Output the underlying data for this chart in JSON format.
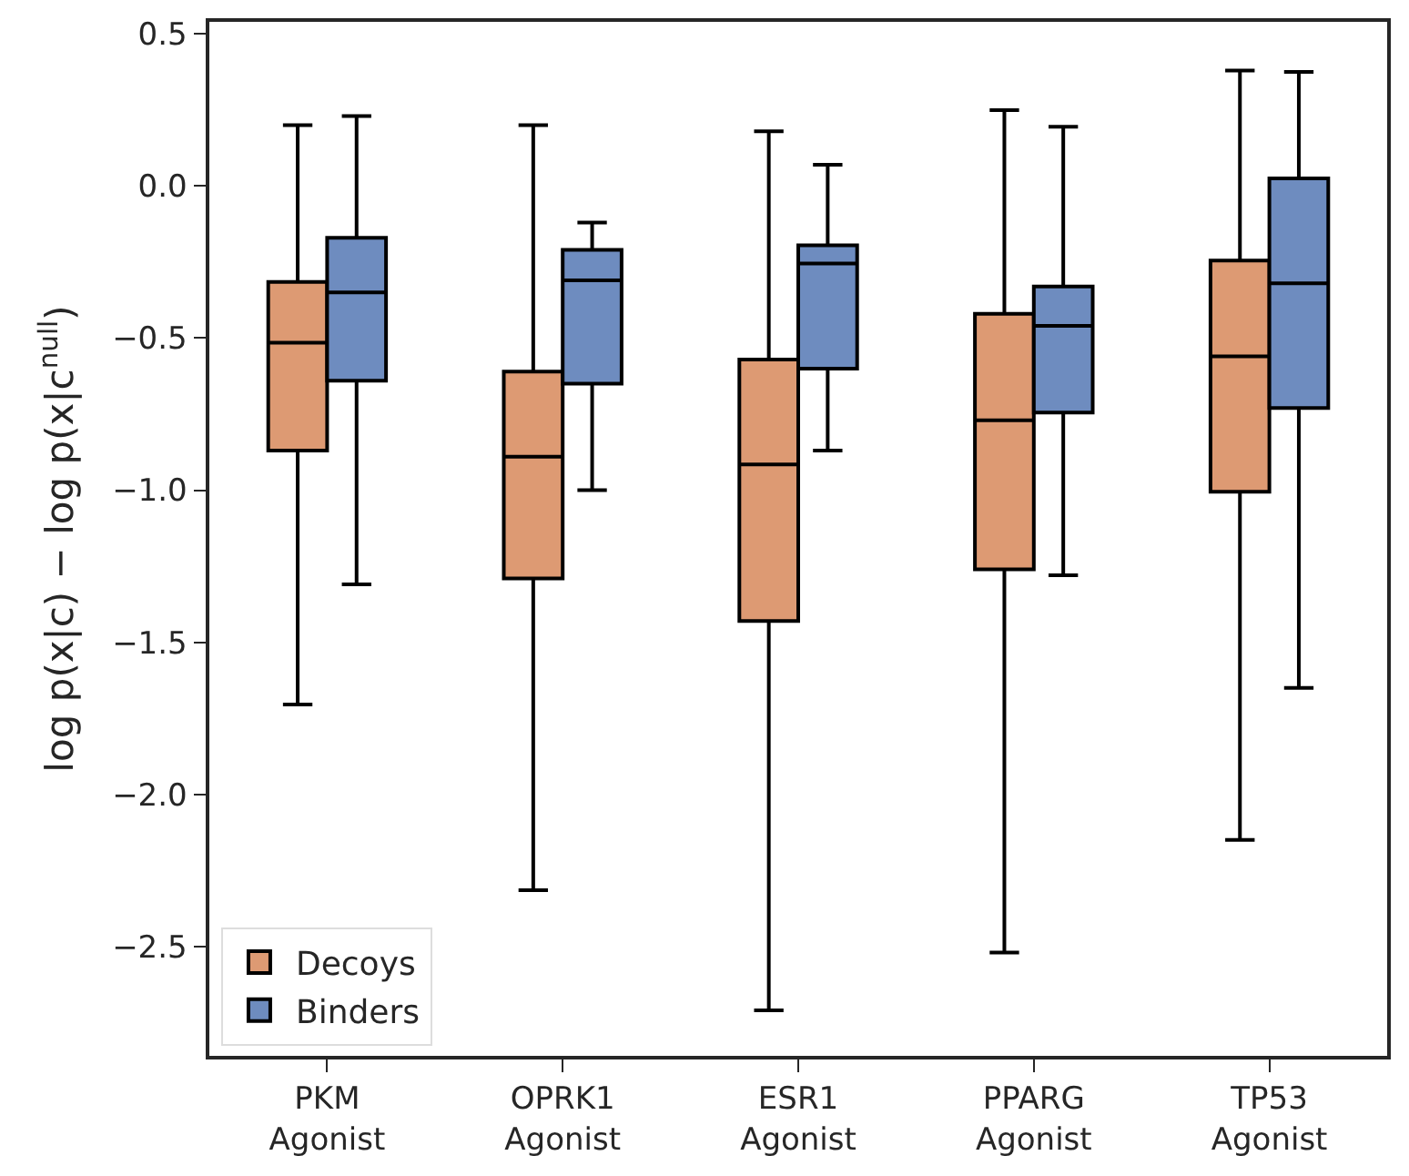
{
  "chart_data": {
    "type": "box",
    "ylabel": "log p(x|c) − log p(x|c$^{null}$)",
    "categories": [
      "PKM\nAgonist",
      "OPRK1\nAgonist",
      "ESR1\nAgonist",
      "PPARG\nAgonist",
      "TP53\nAgonist"
    ],
    "ylim": [
      -2.86,
      0.54
    ],
    "yticks": [
      {
        "value": 0.5,
        "label": "0.5"
      },
      {
        "value": 0.0,
        "label": "0.0"
      },
      {
        "value": -0.5,
        "label": "−0.5"
      },
      {
        "value": -1.0,
        "label": "−1.0"
      },
      {
        "value": -1.5,
        "label": "−1.5"
      },
      {
        "value": -2.0,
        "label": "−2.0"
      },
      {
        "value": -2.5,
        "label": "−2.5"
      }
    ],
    "legend": "bottom left",
    "series": [
      {
        "name": "Decoys",
        "color": "#dd9a73",
        "boxes": [
          {
            "low": -1.705,
            "q1": -0.87,
            "median": -0.515,
            "q3": -0.315,
            "high": 0.2
          },
          {
            "low": -2.315,
            "q1": -1.29,
            "median": -0.89,
            "q3": -0.61,
            "high": 0.2
          },
          {
            "low": -2.71,
            "q1": -1.43,
            "median": -0.915,
            "q3": -0.57,
            "high": 0.18
          },
          {
            "low": -2.52,
            "q1": -1.26,
            "median": -0.77,
            "q3": -0.42,
            "high": 0.25
          },
          {
            "low": -2.15,
            "q1": -1.005,
            "median": -0.56,
            "q3": -0.245,
            "high": 0.38
          }
        ]
      },
      {
        "name": "Binders",
        "color": "#6e8cbf",
        "boxes": [
          {
            "low": -1.31,
            "q1": -0.64,
            "median": -0.35,
            "q3": -0.17,
            "high": 0.23
          },
          {
            "low": -1.0,
            "q1": -0.65,
            "median": -0.31,
            "q3": -0.21,
            "high": -0.12
          },
          {
            "low": -0.87,
            "q1": -0.6,
            "median": -0.255,
            "q3": -0.195,
            "high": 0.07
          },
          {
            "low": -1.28,
            "q1": -0.745,
            "median": -0.46,
            "q3": -0.33,
            "high": 0.195
          },
          {
            "low": -1.65,
            "q1": -0.73,
            "median": -0.32,
            "q3": 0.025,
            "high": 0.375
          }
        ]
      }
    ]
  }
}
